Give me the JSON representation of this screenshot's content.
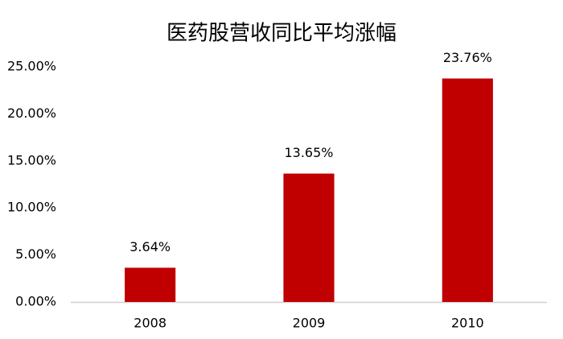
{
  "chart_data": {
    "type": "bar",
    "title": "医药股营收同比平均涨幅",
    "categories": [
      "2008",
      "2009",
      "2010"
    ],
    "values": [
      3.64,
      13.65,
      23.76
    ],
    "value_labels": [
      "3.64%",
      "13.65%",
      "23.76%"
    ],
    "color": "#c00000",
    "ylim": [
      0,
      25
    ],
    "yticks": [
      {
        "value": 0,
        "label": "0.00%"
      },
      {
        "value": 5,
        "label": "5.00%"
      },
      {
        "value": 10,
        "label": "10.00%"
      },
      {
        "value": 15,
        "label": "15.00%"
      },
      {
        "value": 20,
        "label": "20.00%"
      },
      {
        "value": 25,
        "label": "25.00%"
      }
    ],
    "grid": false
  }
}
